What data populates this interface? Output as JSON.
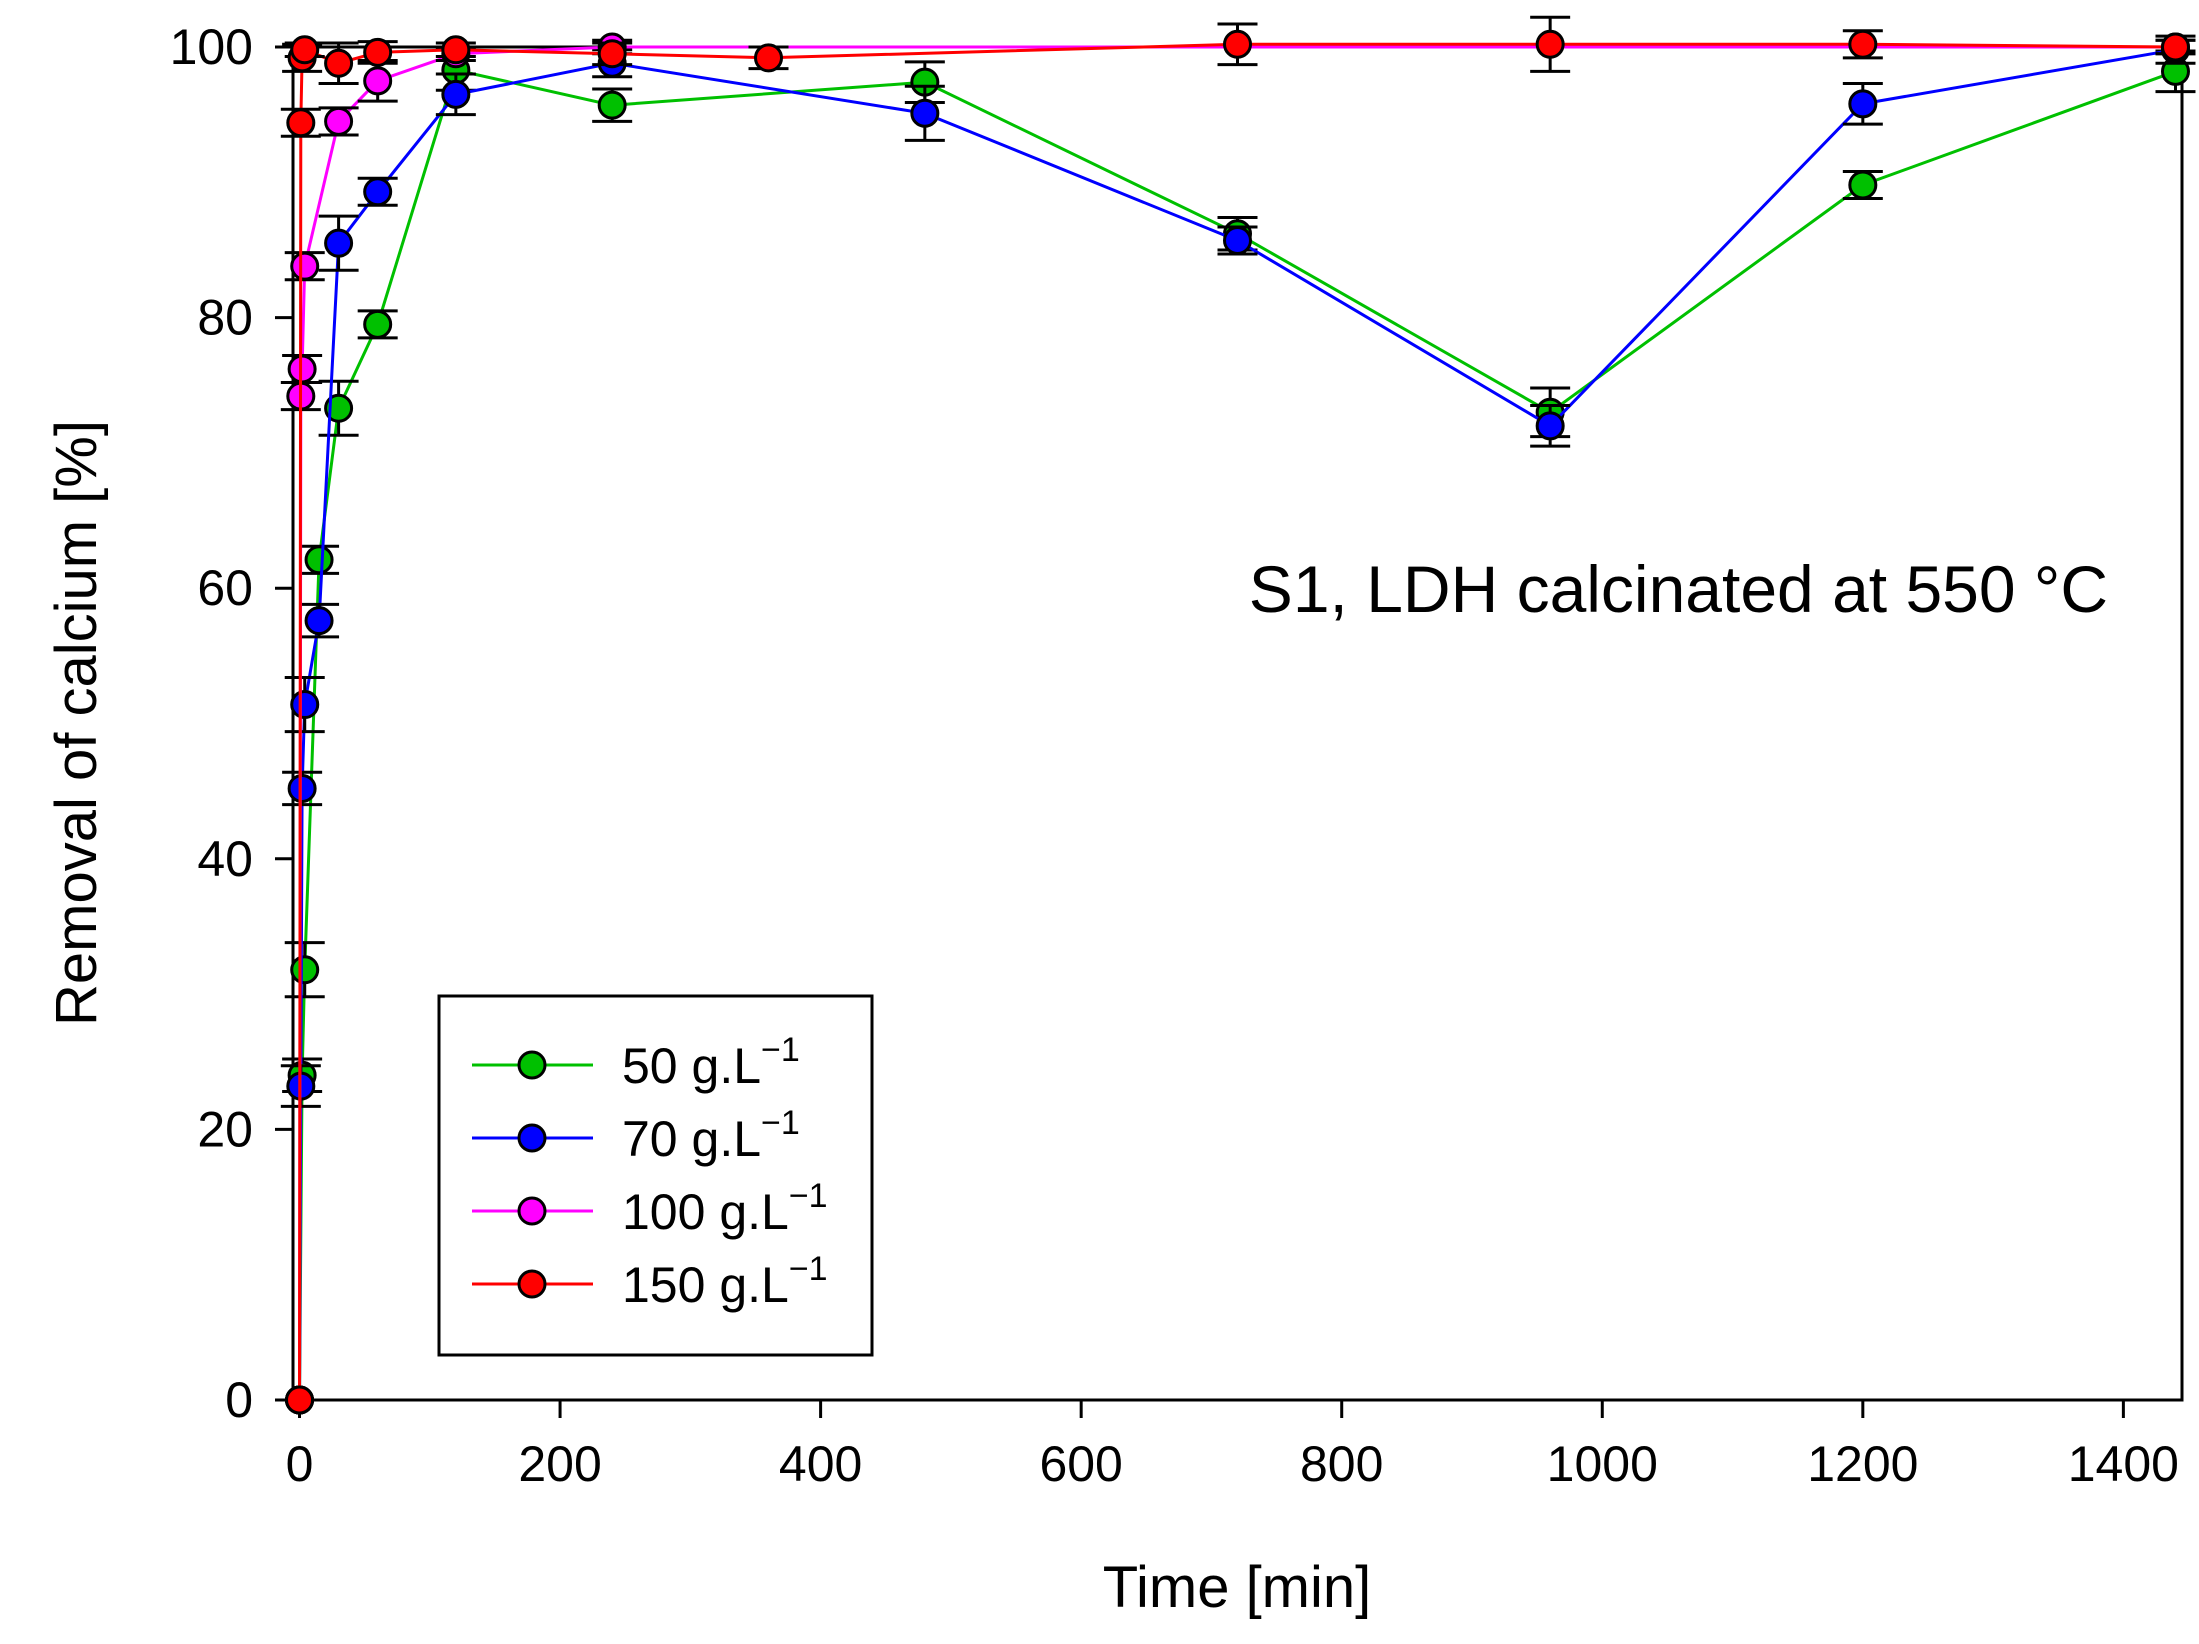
{
  "chart_data": {
    "type": "line",
    "title": "",
    "xlabel": "Time [min]",
    "ylabel": "Removal of calcium [%]",
    "xlim": [
      -5,
      1445
    ],
    "ylim": [
      0,
      100
    ],
    "xticks": [
      0,
      200,
      400,
      600,
      800,
      1000,
      1200,
      1400
    ],
    "yticks": [
      0,
      20,
      40,
      60,
      80,
      100
    ],
    "grid": false,
    "legend_position": "bottom-left",
    "annotation": "S1, LDH calcinated at 550 °C",
    "series": [
      {
        "name": "50 g.L",
        "name_sup": "−1",
        "color": "#00c000",
        "x": [
          0,
          2,
          4,
          15,
          30,
          60,
          120,
          240,
          480,
          720,
          960,
          1200,
          1440
        ],
        "y": [
          0,
          24,
          31.8,
          62.1,
          73.3,
          79.5,
          98.3,
          95.7,
          97.4,
          86.2,
          73,
          89.8,
          98.2
        ],
        "err": [
          0,
          1.2,
          2,
          1,
          2,
          1,
          1.5,
          1.2,
          1.5,
          1.2,
          1.8,
          1,
          1.5
        ]
      },
      {
        "name": "70 g.L",
        "name_sup": "−1",
        "color": "#0000ff",
        "x": [
          0,
          1,
          2,
          4,
          15,
          30,
          60,
          120,
          240,
          480,
          720,
          960,
          1200,
          1440
        ],
        "y": [
          0,
          23.2,
          45.2,
          51.4,
          57.6,
          85.5,
          89.3,
          96.5,
          98.8,
          95.1,
          85.7,
          72,
          95.8,
          99.8
        ],
        "err": [
          0,
          1.5,
          1.2,
          2,
          1.2,
          2,
          1,
          1.5,
          1,
          2,
          1,
          1.5,
          1.5,
          1
        ]
      },
      {
        "name": "100 g.L",
        "name_sup": "−1",
        "color": "#ff00ff",
        "x": [
          0,
          1,
          2,
          4,
          30,
          60,
          120,
          240,
          1440
        ],
        "y": [
          0,
          74.2,
          76.2,
          83.8,
          94.5,
          97.5,
          99.5,
          100,
          100
        ],
        "err": [
          0,
          1,
          1,
          1,
          1,
          1.5,
          0.5,
          0.5,
          0.5
        ]
      },
      {
        "name": "150 g.L",
        "name_sup": "−1",
        "color": "#ff0000",
        "x": [
          0,
          1,
          2,
          4,
          30,
          60,
          120,
          240,
          360,
          720,
          960,
          1200,
          1440
        ],
        "y": [
          0,
          94.4,
          99.2,
          99.8,
          98.8,
          99.6,
          99.8,
          99.5,
          99.2,
          100.2,
          100.2,
          100.2,
          100
        ],
        "err": [
          0,
          1,
          1,
          0.5,
          1.5,
          0.8,
          0.5,
          0.8,
          0.8,
          1.5,
          2,
          1,
          0.5
        ]
      }
    ]
  }
}
